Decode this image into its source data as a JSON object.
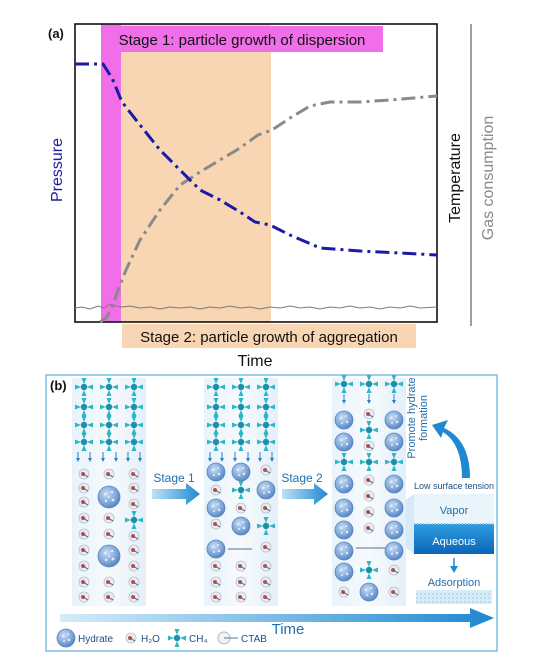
{
  "panel_a": {
    "label": "(a)",
    "stage1_label": "Stage 1: particle growth of dispersion",
    "stage2_label": "Stage 2: particle growth of aggregation",
    "xlabel": "Time",
    "ylabel_left": "Pressure",
    "ylabel_right1": "Temperature",
    "ylabel_right2": "Gas consumption",
    "colors": {
      "pressure": "#1a1aa6",
      "gas": "#8a8a8a",
      "temperature": "#7a7a7a",
      "stage1": "#f06ee8",
      "stage2": "#f8d6b4"
    }
  },
  "panel_b": {
    "label": "(b)",
    "stage1_label": "Stage 1",
    "stage2_label": "Stage 2",
    "promote_label_1": "Promote hydrate",
    "promote_label_2": "formation",
    "surface_tension_label": "Low surface tension",
    "vapor_label": "Vapor",
    "aqueous_label": "Aqueous",
    "adsorption_label": "Adsorption",
    "time_label": "Time",
    "legend": [
      {
        "icon": "hydrate-icon",
        "label": "Hydrate"
      },
      {
        "icon": "h2o-icon",
        "label": "H₂O"
      },
      {
        "icon": "ch4-icon",
        "label": "CH₄"
      },
      {
        "icon": "ctab-icon",
        "label": "CTAB"
      }
    ],
    "colors": {
      "frame": "#5aaee0",
      "arrow": "#1e88d0",
      "ch4": "#2ab7c8",
      "hydrate": "#7aa4d8"
    }
  }
}
